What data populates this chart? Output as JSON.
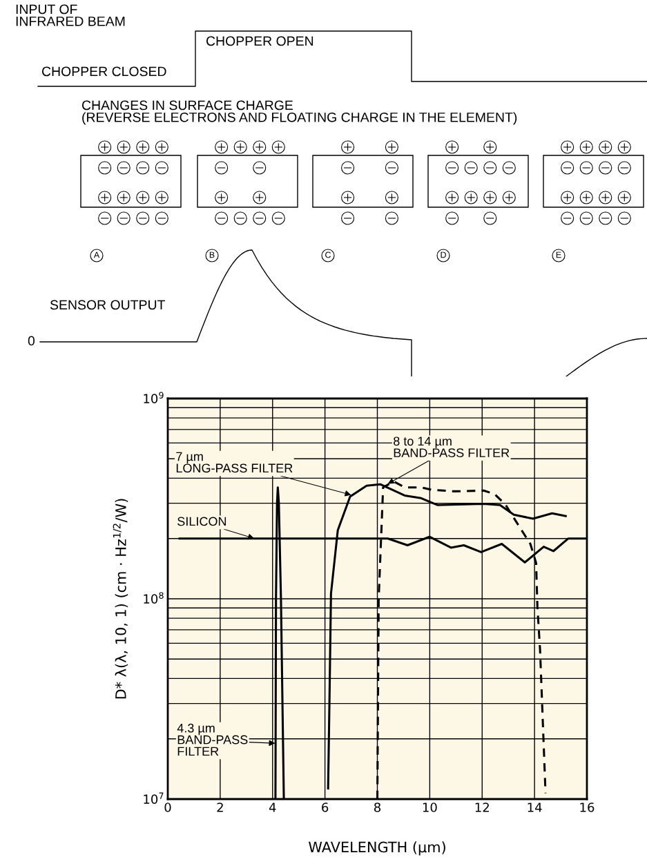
{
  "chart_data": [
    {
      "type": "other",
      "annotations": [
        "INPUT OF\nINFRARED BEAM",
        "CHOPPER OPEN",
        "CHOPPER CLOSED",
        "CHANGES IN SURFACE CHARGE\n(REVERSE ELECTRONS AND FLOATING CHARGE IN THE ELEMENT)",
        "A",
        "B",
        "C",
        "D",
        "E",
        "SENSOR OUTPUT",
        "0"
      ]
    },
    {
      "type": "line",
      "xlabel": "WAVELENGTH (µm)",
      "ylabel": "D* λ(λ, 10, 1) (cm · Hz$^{1/2}$/W)",
      "log": "y",
      "grid": true,
      "xlim": [
        0,
        16
      ],
      "xticks": [
        0,
        2,
        4,
        6,
        8,
        10,
        12,
        14,
        16
      ],
      "ylim": [
        10000000.0,
        1000000000.0
      ],
      "yticks": [
        {
          "value": 10000000.0,
          "label": "10$^{7}$"
        },
        {
          "value": 100000000.0,
          "label": "10$^{8}$"
        },
        {
          "value": 1000000000.0,
          "label": "10$^{9}$"
        }
      ],
      "series": [
        {
          "name": "SILICON",
          "color": "#000000",
          "line_style": "solid",
          "x": [
            0.45,
            8.4,
            9.15,
            9.99,
            10.81,
            11.3,
            11.96,
            12.75,
            13.63,
            14.35,
            14.72,
            15.29,
            16
          ],
          "values": [
            200000000.0,
            200000000.0,
            185000000.0,
            204000000.0,
            180000000.0,
            185000000.0,
            171000000.0,
            188000000.0,
            152000000.0,
            182000000.0,
            173000000.0,
            200000000.0,
            200000000.0
          ]
        },
        {
          "name": "4.3 µm\nBAND-PASS\nFILTER",
          "color": "#000000",
          "line_style": "solid",
          "x": [
            4.11,
            4.13,
            4.17,
            4.2,
            4.24,
            4.32,
            4.43
          ],
          "values": [
            10000000.0,
            100000000.0,
            300000000.0,
            360000000.0,
            300000000.0,
            100000000.0,
            10000000.0
          ]
        },
        {
          "name": "7 µm\nLONG-PASS FILTER",
          "color": "#000000",
          "line_style": "solid",
          "x": [
            6.12,
            6.17,
            6.23,
            6.49,
            6.96,
            7.59,
            8.11,
            9.04,
            9.67,
            10.29,
            12.06,
            12.68,
            13.21,
            13.94,
            14.67,
            15.19
          ],
          "values": [
            11300000.0,
            30000000.0,
            106000000.0,
            220000000.0,
            324000000.0,
            367000000.0,
            373000000.0,
            328000000.0,
            318000000.0,
            294000000.0,
            298000000.0,
            294000000.0,
            263000000.0,
            251000000.0,
            267000000.0,
            259000000.0
          ]
        },
        {
          "name": "8 to 14 µm\nBAND-PASS FILTER",
          "color": "#000000",
          "line_style": "dashed",
          "x": [
            8.0,
            8.05,
            8.22,
            8.63,
            9.04,
            9.67,
            10.09,
            10.92,
            12.06,
            12.48,
            12.9,
            13.43,
            13.84,
            14.06,
            14.11,
            14.21,
            14.42
          ],
          "values": [
            10000000.0,
            100000000.0,
            360000000.0,
            385000000.0,
            360000000.0,
            360000000.0,
            350000000.0,
            344000000.0,
            347000000.0,
            333000000.0,
            294000000.0,
            228000000.0,
            188000000.0,
            151000000.0,
            91000000.0,
            56000000.0,
            10700000.0
          ]
        }
      ]
    }
  ]
}
